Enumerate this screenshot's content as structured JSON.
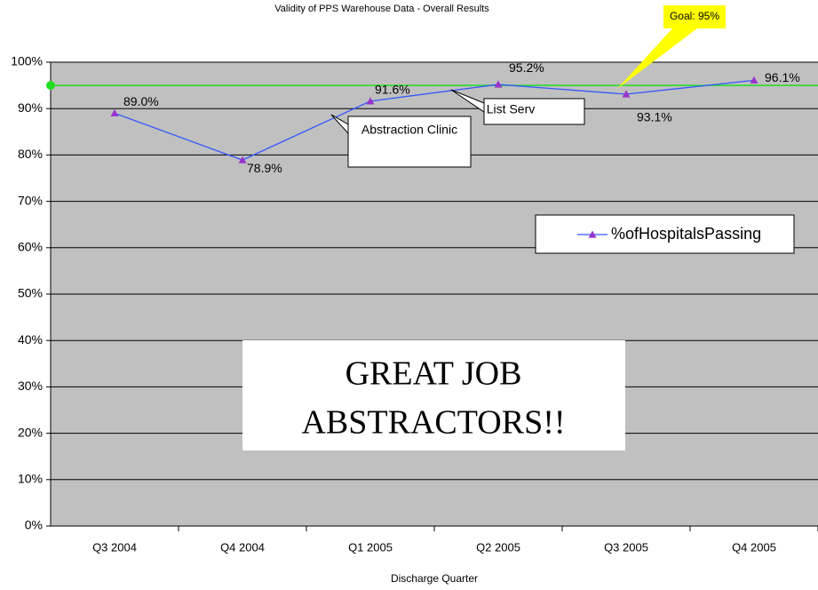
{
  "chart_data": {
    "type": "line",
    "title": "Validity of PPS Warehouse Data - Overall Results",
    "x_label": "Discharge Quarter",
    "categories": [
      "Q3 2004",
      "Q4 2004",
      "Q1 2005",
      "Q2 2005",
      "Q3 2005",
      "Q4 2005"
    ],
    "series": [
      {
        "name": "%ofHospitalsPassing",
        "color": "#3355ff",
        "marker_color": "#9933cc",
        "values": [
          89.0,
          78.9,
          91.6,
          95.2,
          93.1,
          96.1
        ],
        "value_labels": [
          "89.0%",
          "78.9%",
          "91.6%",
          "95.2%",
          "93.1%",
          "96.1%"
        ]
      }
    ],
    "ylim": [
      0,
      100
    ],
    "yticks": [
      {
        "value": 0,
        "label": "0%"
      },
      {
        "value": 10,
        "label": "10%"
      },
      {
        "value": 20,
        "label": "20%"
      },
      {
        "value": 30,
        "label": "30%"
      },
      {
        "value": 40,
        "label": "40%"
      },
      {
        "value": 50,
        "label": "50%"
      },
      {
        "value": 60,
        "label": "60%"
      },
      {
        "value": 70,
        "label": "70%"
      },
      {
        "value": 80,
        "label": "80%"
      },
      {
        "value": 90,
        "label": "90%"
      },
      {
        "value": 100,
        "label": "100%"
      }
    ],
    "grid": true,
    "goal": {
      "value": 95,
      "label": "Goal: 95%",
      "color": "#22dd22"
    },
    "annotations": [
      "Abstraction Clinic",
      "List Serv"
    ],
    "banner": [
      "GREAT JOB",
      "ABSTRACTORS!!"
    ]
  }
}
